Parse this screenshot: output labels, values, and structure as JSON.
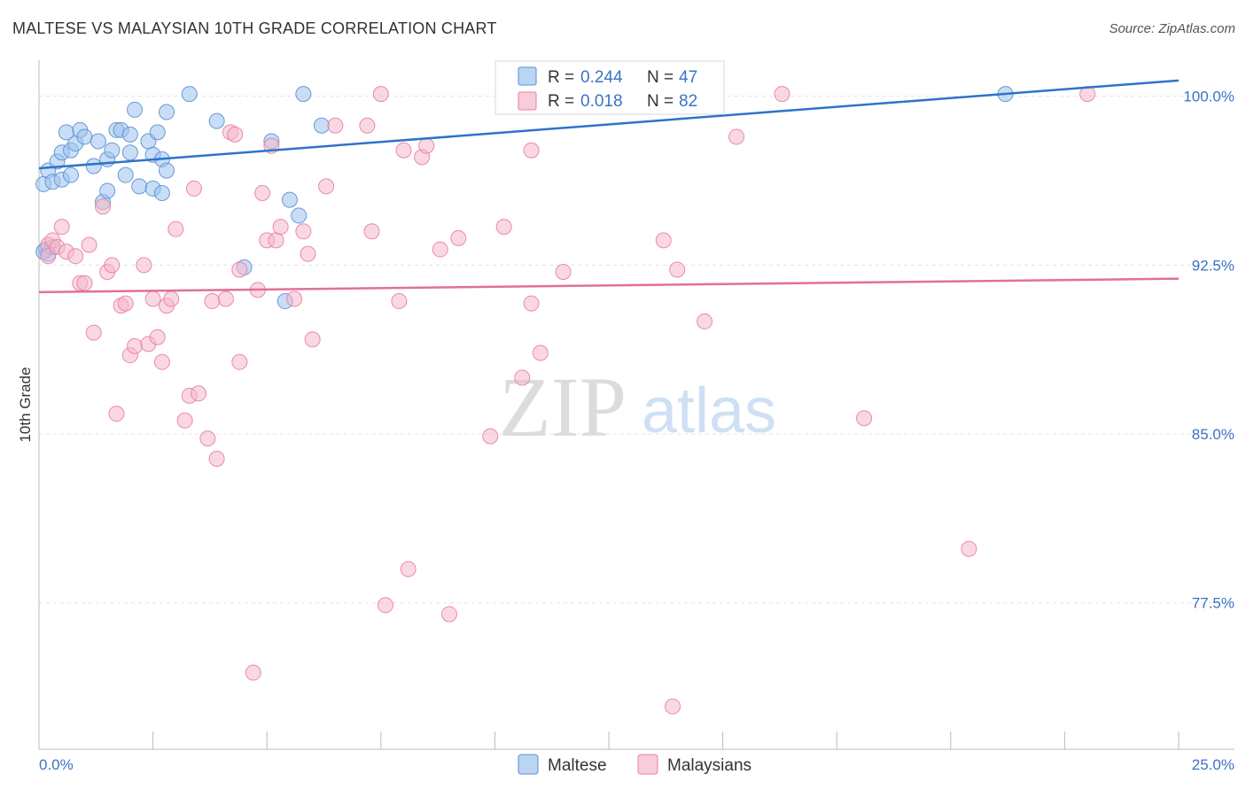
{
  "header": {
    "title": "MALTESE VS MALAYSIAN 10TH GRADE CORRELATION CHART",
    "source": "Source: ZipAtlas.com"
  },
  "watermark": {
    "zip": "ZIP",
    "atlas": "atlas"
  },
  "stats_box": {
    "rows": [
      {
        "r_label": "R =",
        "r_value": "0.244",
        "n_label": "N =",
        "n_value": "47"
      },
      {
        "r_label": "R =",
        "r_value": "0.018",
        "n_label": "N =",
        "n_value": "82"
      }
    ]
  },
  "colors": {
    "maltese": "#9dc3ee",
    "maltese_stroke": "#5b8fd4",
    "maltese_line": "#2f73c9",
    "malaysians": "#f5b8cb",
    "malaysians_stroke": "#e87fa0",
    "malaysians_line": "#e0709a",
    "value_text": "#3b73c5",
    "grid": "#e3e3e3"
  },
  "chart_data": {
    "type": "scatter",
    "title": "MALTESE VS MALAYSIAN 10TH GRADE CORRELATION CHART",
    "ylabel": "10th Grade",
    "xlabel": "",
    "xlim": [
      0,
      25
    ],
    "ylim": [
      71,
      101.6
    ],
    "x_tick_labels": [
      {
        "value": 0,
        "label": "0.0%"
      },
      {
        "value": 25,
        "label": "25.0%"
      }
    ],
    "y_tick_labels": [
      {
        "value": 77.5,
        "label": "77.5%"
      },
      {
        "value": 85.0,
        "label": "85.0%"
      },
      {
        "value": 92.5,
        "label": "92.5%"
      },
      {
        "value": 100.0,
        "label": "100.0%"
      }
    ],
    "grid": true,
    "legend_position": "bottom-center",
    "series": [
      {
        "name": "Maltese",
        "r": 0.244,
        "n": 47,
        "trend": [
          [
            0,
            96.8
          ],
          [
            25,
            100.7
          ]
        ],
        "points": [
          [
            0.1,
            96.1
          ],
          [
            0.2,
            96.7
          ],
          [
            0.3,
            96.2
          ],
          [
            0.4,
            97.1
          ],
          [
            0.5,
            96.3
          ],
          [
            0.5,
            97.5
          ],
          [
            0.6,
            98.4
          ],
          [
            0.7,
            96.5
          ],
          [
            0.7,
            97.6
          ],
          [
            0.8,
            97.9
          ],
          [
            0.9,
            98.5
          ],
          [
            1.0,
            98.2
          ],
          [
            1.2,
            96.9
          ],
          [
            1.3,
            98.0
          ],
          [
            1.4,
            95.3
          ],
          [
            1.5,
            97.2
          ],
          [
            1.5,
            95.8
          ],
          [
            1.6,
            97.6
          ],
          [
            1.7,
            98.5
          ],
          [
            1.8,
            98.5
          ],
          [
            1.9,
            96.5
          ],
          [
            2.0,
            97.5
          ],
          [
            2.0,
            98.3
          ],
          [
            2.1,
            99.4
          ],
          [
            2.2,
            96.0
          ],
          [
            2.4,
            98.0
          ],
          [
            2.5,
            95.9
          ],
          [
            2.5,
            97.4
          ],
          [
            2.6,
            98.4
          ],
          [
            2.7,
            97.2
          ],
          [
            2.7,
            95.7
          ],
          [
            2.8,
            99.3
          ],
          [
            2.8,
            96.7
          ],
          [
            3.3,
            100.1
          ],
          [
            3.9,
            98.9
          ],
          [
            4.5,
            92.4
          ],
          [
            5.1,
            98.0
          ],
          [
            5.4,
            90.9
          ],
          [
            5.5,
            95.4
          ],
          [
            5.7,
            94.7
          ],
          [
            5.8,
            100.1
          ],
          [
            6.2,
            98.7
          ],
          [
            21.2,
            100.1
          ],
          [
            0.15,
            93.2
          ],
          [
            0.2,
            93.0
          ],
          [
            0.3,
            93.3
          ],
          [
            0.1,
            93.1
          ]
        ]
      },
      {
        "name": "Malaysians",
        "r": 0.018,
        "n": 82,
        "trend": [
          [
            0,
            91.3
          ],
          [
            25,
            91.9
          ]
        ],
        "points": [
          [
            0.2,
            93.4
          ],
          [
            0.2,
            92.9
          ],
          [
            0.3,
            93.6
          ],
          [
            0.4,
            93.3
          ],
          [
            0.5,
            94.2
          ],
          [
            0.6,
            93.1
          ],
          [
            0.8,
            92.9
          ],
          [
            0.9,
            91.7
          ],
          [
            1.0,
            91.7
          ],
          [
            1.1,
            93.4
          ],
          [
            1.2,
            89.5
          ],
          [
            1.4,
            95.1
          ],
          [
            1.5,
            92.2
          ],
          [
            1.6,
            92.5
          ],
          [
            1.7,
            85.9
          ],
          [
            1.8,
            90.7
          ],
          [
            1.9,
            90.8
          ],
          [
            2.0,
            88.5
          ],
          [
            2.1,
            88.9
          ],
          [
            2.3,
            92.5
          ],
          [
            2.4,
            89.0
          ],
          [
            2.5,
            91.0
          ],
          [
            2.6,
            89.3
          ],
          [
            2.7,
            88.2
          ],
          [
            2.8,
            90.7
          ],
          [
            2.9,
            91.0
          ],
          [
            3.0,
            94.1
          ],
          [
            3.2,
            85.6
          ],
          [
            3.3,
            86.7
          ],
          [
            3.4,
            95.9
          ],
          [
            3.5,
            86.8
          ],
          [
            3.7,
            84.8
          ],
          [
            3.8,
            90.9
          ],
          [
            3.9,
            83.9
          ],
          [
            4.1,
            91.0
          ],
          [
            4.2,
            98.4
          ],
          [
            4.3,
            98.3
          ],
          [
            4.4,
            92.3
          ],
          [
            4.4,
            88.2
          ],
          [
            4.7,
            74.4
          ],
          [
            4.8,
            91.4
          ],
          [
            4.9,
            95.7
          ],
          [
            5.0,
            93.6
          ],
          [
            5.1,
            97.8
          ],
          [
            5.2,
            93.6
          ],
          [
            5.3,
            94.2
          ],
          [
            5.6,
            91.0
          ],
          [
            5.8,
            94.0
          ],
          [
            5.9,
            93.0
          ],
          [
            6.0,
            89.2
          ],
          [
            6.3,
            96.0
          ],
          [
            6.5,
            98.7
          ],
          [
            7.2,
            98.7
          ],
          [
            7.3,
            94.0
          ],
          [
            7.5,
            100.1
          ],
          [
            7.6,
            77.4
          ],
          [
            7.9,
            90.9
          ],
          [
            8.0,
            97.6
          ],
          [
            8.1,
            79.0
          ],
          [
            8.4,
            97.3
          ],
          [
            8.5,
            97.8
          ],
          [
            8.8,
            93.2
          ],
          [
            9.0,
            77.0
          ],
          [
            9.2,
            93.7
          ],
          [
            9.9,
            84.9
          ],
          [
            10.2,
            94.2
          ],
          [
            10.6,
            87.5
          ],
          [
            10.8,
            90.8
          ],
          [
            10.8,
            97.6
          ],
          [
            11.0,
            88.6
          ],
          [
            11.2,
            100.1
          ],
          [
            11.5,
            92.2
          ],
          [
            13.3,
            100.1
          ],
          [
            13.7,
            93.6
          ],
          [
            13.9,
            72.9
          ],
          [
            14.0,
            92.3
          ],
          [
            14.6,
            90.0
          ],
          [
            15.3,
            98.2
          ],
          [
            16.3,
            100.1
          ],
          [
            18.1,
            85.7
          ],
          [
            20.4,
            79.9
          ],
          [
            23.0,
            100.1
          ]
        ]
      }
    ]
  },
  "legend": {
    "items": [
      {
        "label": "Maltese"
      },
      {
        "label": "Malaysians"
      }
    ]
  }
}
